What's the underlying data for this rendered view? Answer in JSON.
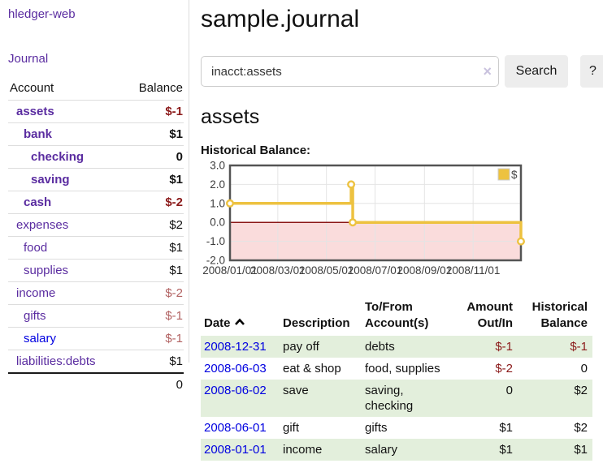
{
  "colors": {
    "purple": "#5a2ca0",
    "blue": "#0000e0",
    "negative": "#8b1a1a",
    "negative_soft": "#b26262",
    "stripe_green": "#e3efdc",
    "button_bg": "#ededed",
    "divider": "#dddddd",
    "clear_icon": "#c9c2de",
    "chart_line": "#edc240",
    "chart_border": "#545454",
    "chart_grid": "#e4e4e4",
    "chart_zero_line": "#8b1717",
    "chart_negative_fill": "#fadcdc"
  },
  "sidebar": {
    "app_title": "hledger-web",
    "journal_link": "Journal",
    "accounts_table": {
      "header_account": "Account",
      "header_balance": "Balance",
      "rows": [
        {
          "name": "assets",
          "balance": "$-1",
          "depth": 1,
          "in_acct": true,
          "negative": true,
          "blue": false
        },
        {
          "name": "bank",
          "balance": "$1",
          "depth": 2,
          "in_acct": true,
          "negative": false,
          "blue": false
        },
        {
          "name": "checking",
          "balance": "0",
          "depth": 3,
          "in_acct": true,
          "negative": false,
          "blue": false
        },
        {
          "name": "saving",
          "balance": "$1",
          "depth": 3,
          "in_acct": true,
          "negative": false,
          "blue": false
        },
        {
          "name": "cash",
          "balance": "$-2",
          "depth": 2,
          "in_acct": true,
          "negative": true,
          "blue": false
        },
        {
          "name": "expenses",
          "balance": "$2",
          "depth": 1,
          "in_acct": false,
          "negative": false,
          "blue": false
        },
        {
          "name": "food",
          "balance": "$1",
          "depth": 2,
          "in_acct": false,
          "negative": false,
          "blue": false
        },
        {
          "name": "supplies",
          "balance": "$1",
          "depth": 2,
          "in_acct": false,
          "negative": false,
          "blue": false
        },
        {
          "name": "income",
          "balance": "$-2",
          "depth": 1,
          "in_acct": false,
          "negative": true,
          "blue": false
        },
        {
          "name": "gifts",
          "balance": "$-1",
          "depth": 2,
          "in_acct": false,
          "negative": true,
          "blue": false
        },
        {
          "name": "salary",
          "balance": "$-1",
          "depth": 2,
          "in_acct": false,
          "negative": true,
          "blue": true
        },
        {
          "name": "liabilities:debts",
          "balance": "$1",
          "depth": 1,
          "in_acct": false,
          "negative": false,
          "blue": false
        }
      ],
      "total": "0"
    }
  },
  "main": {
    "title": "sample.journal",
    "search": {
      "value": "inacct:assets",
      "clear_icon": "×",
      "search_button": "Search",
      "help_button": "?"
    },
    "account_heading": "assets",
    "chart_label": "Historical Balance:"
  },
  "chart_data": {
    "type": "line",
    "step": true,
    "title": "Historical Balance:",
    "series": [
      {
        "name": "$",
        "points": [
          [
            "2008-01-01",
            1
          ],
          [
            "2008-06-01",
            2
          ],
          [
            "2008-06-03",
            0
          ],
          [
            "2008-12-31",
            -1
          ]
        ]
      }
    ],
    "xlim": [
      "2008-01-01",
      "2008-12-31"
    ],
    "ylim": [
      -2,
      3
    ],
    "x_ticks": [
      "2008-01-01",
      "2008-03-01",
      "2008-05-01",
      "2008-07-01",
      "2008-09-01",
      "2008-11-01"
    ],
    "x_tick_labels": [
      "2008/01/01",
      "2008/03/01",
      "2008/05/01",
      "2008/07/01",
      "2008/09/01",
      "2008/11/01"
    ],
    "y_ticks": [
      3.0,
      2.0,
      1.0,
      0.0,
      -1.0,
      -2.0
    ],
    "y_tick_labels": [
      "3.0",
      "2.0",
      "1.0",
      "0.0",
      "-1.0",
      "-2.0"
    ],
    "grid": true,
    "legend_position": "top-right",
    "legend_label": "$",
    "negative_region": true
  },
  "transactions": {
    "headers": {
      "date": "Date",
      "sort_icon": "chevron-up",
      "description": "Description",
      "accounts": "To/From Account(s)",
      "amount": "Amount Out/In",
      "balance": "Historical Balance"
    },
    "rows": [
      {
        "date": "2008-12-31",
        "description": "pay off",
        "accounts": "debts",
        "amount": "$-1",
        "amount_negative": true,
        "balance": "$-1",
        "balance_negative": true
      },
      {
        "date": "2008-06-03",
        "description": "eat & shop",
        "accounts": "food, supplies",
        "amount": "$-2",
        "amount_negative": true,
        "balance": "0",
        "balance_negative": false
      },
      {
        "date": "2008-06-02",
        "description": "save",
        "accounts": "saving, checking",
        "amount": "0",
        "amount_negative": false,
        "balance": "$2",
        "balance_negative": false
      },
      {
        "date": "2008-06-01",
        "description": "gift",
        "accounts": "gifts",
        "amount": "$1",
        "amount_negative": false,
        "balance": "$2",
        "balance_negative": false
      },
      {
        "date": "2008-01-01",
        "description": "income",
        "accounts": "salary",
        "amount": "$1",
        "amount_negative": false,
        "balance": "$1",
        "balance_negative": false
      }
    ]
  }
}
